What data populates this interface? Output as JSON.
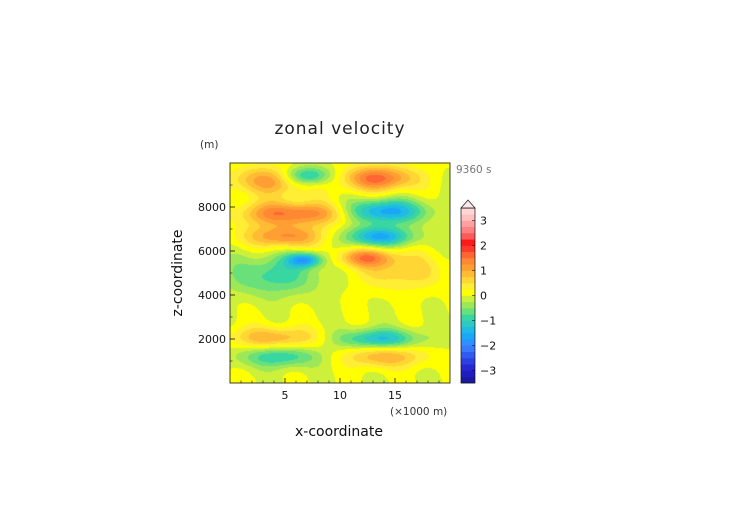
{
  "chart_data": {
    "type": "heatmap",
    "title": "zonal velocity",
    "xlabel": "x-coordinate",
    "ylabel": "z-coordinate",
    "x_unit": "(×1000 m)",
    "y_unit": "(m)",
    "time_label": "9360 s",
    "xlim": [
      0,
      20
    ],
    "ylim": [
      0,
      10000
    ],
    "x_ticks": [
      5,
      10,
      15
    ],
    "y_ticks": [
      2000,
      4000,
      6000,
      8000
    ],
    "colorbar": {
      "ticks": [
        3,
        2,
        1,
        0,
        -1,
        -2,
        -3
      ],
      "levels": [
        -3.5,
        -3.25,
        -3,
        -2.75,
        -2.5,
        -2.25,
        -2,
        -1.75,
        -1.5,
        -1.25,
        -1,
        -0.75,
        -0.5,
        -0.25,
        0,
        0.25,
        0.5,
        0.75,
        1,
        1.25,
        1.5,
        1.75,
        2,
        2.25,
        2.5,
        2.75,
        3,
        3.25,
        3.5
      ],
      "extend": "max",
      "colors": [
        "#1a1aa0",
        "#1e1ec0",
        "#2727d4",
        "#2d40e0",
        "#2f5cf0",
        "#3a78ff",
        "#2c90ff",
        "#1ca6f6",
        "#1dbbe6",
        "#2dc9c2",
        "#38d6a0",
        "#6ae07a",
        "#9ce858",
        "#cdf03a",
        "#ffff00",
        "#ffee33",
        "#ffd633",
        "#ffbb33",
        "#ff9f33",
        "#ff8833",
        "#ff6633",
        "#ff3a2a",
        "#ff1a1a",
        "#ff5a5a",
        "#ff8080",
        "#ffa0a0",
        "#ffc0c0",
        "#ffd6d6"
      ]
    },
    "field_components": [
      {
        "x": 4.0,
        "z": 9200,
        "u": 1.2,
        "sx": 2.8,
        "sz": 450
      },
      {
        "x": 7.0,
        "z": 9400,
        "u": -1.6,
        "sx": 1.6,
        "sz": 320
      },
      {
        "x": 13.5,
        "z": 9300,
        "u": 1.6,
        "sx": 2.3,
        "sz": 400
      },
      {
        "x": 7.0,
        "z": 7700,
        "u": 1.4,
        "sx": 2.8,
        "sz": 380
      },
      {
        "x": 3.0,
        "z": 7700,
        "u": 0.7,
        "sx": 1.8,
        "sz": 400
      },
      {
        "x": 14.0,
        "z": 7800,
        "u": -1.7,
        "sx": 2.6,
        "sz": 380
      },
      {
        "x": 5.0,
        "z": 6650,
        "u": 1.3,
        "sx": 2.6,
        "sz": 360
      },
      {
        "x": 13.5,
        "z": 6650,
        "u": -1.6,
        "sx": 2.2,
        "sz": 330
      },
      {
        "x": 12.3,
        "z": 5700,
        "u": 1.3,
        "sx": 1.8,
        "sz": 300
      },
      {
        "x": 6.8,
        "z": 5600,
        "u": -1.6,
        "sx": 1.1,
        "sz": 230
      },
      {
        "x": 4.0,
        "z": 4900,
        "u": -0.9,
        "sx": 3.0,
        "sz": 650
      },
      {
        "x": 15.5,
        "z": 5100,
        "u": 0.7,
        "sx": 2.8,
        "sz": 600
      },
      {
        "x": 4.0,
        "z": 2050,
        "u": 1.0,
        "sx": 2.8,
        "sz": 350
      },
      {
        "x": 13.5,
        "z": 2000,
        "u": -1.3,
        "sx": 2.6,
        "sz": 320
      },
      {
        "x": 4.5,
        "z": 1200,
        "u": -1.0,
        "sx": 2.6,
        "sz": 350
      },
      {
        "x": 14.0,
        "z": 1200,
        "u": 1.0,
        "sx": 2.6,
        "sz": 350
      }
    ]
  }
}
